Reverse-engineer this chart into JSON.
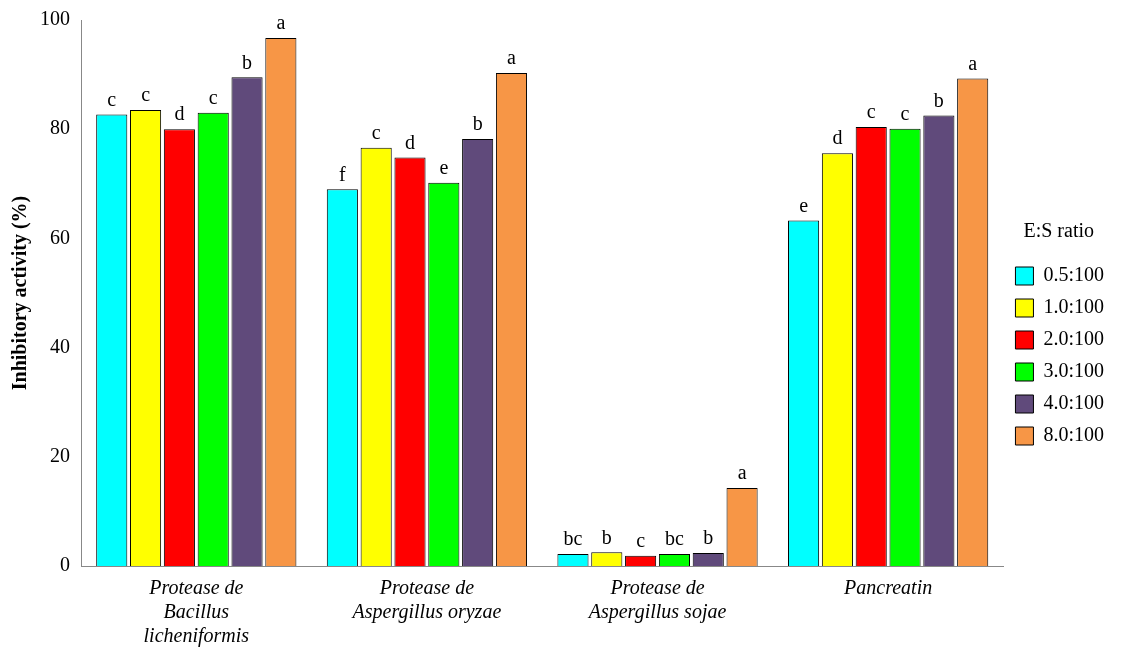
{
  "chart_data": {
    "type": "bar",
    "ylabel": "Inhibitory activity (%)",
    "legend_title": "E:S ratio",
    "legend": "right",
    "grid": false,
    "categories": [
      "Protease de Bacillus licheniformis",
      "Protease de Aspergillus oryzae",
      "Protease de Aspergillus sojae",
      "Pancreatin"
    ],
    "ylim": [
      0,
      100
    ],
    "yticks": [
      0,
      20,
      40,
      60,
      80,
      100
    ],
    "series": [
      {
        "name": "0.5:100",
        "color": "#00ffff",
        "values": [
          82.7,
          69.0,
          2.2,
          63.3
        ],
        "value_labels": [
          "c",
          "f",
          "bc",
          "e"
        ]
      },
      {
        "name": "1.0:100",
        "color": "#ffff00",
        "values": [
          83.5,
          76.6,
          2.5,
          75.6
        ],
        "value_labels": [
          "c",
          "c",
          "b",
          "d"
        ]
      },
      {
        "name": "2.0:100",
        "color": "#ff0000",
        "values": [
          80.0,
          74.8,
          1.9,
          80.4
        ],
        "value_labels": [
          "d",
          "d",
          "c",
          "c"
        ]
      },
      {
        "name": "3.0:100",
        "color": "#00ff00",
        "values": [
          83.0,
          70.2,
          2.2,
          80.1
        ],
        "value_labels": [
          "c",
          "e",
          "bc",
          "c"
        ]
      },
      {
        "name": "4.0:100",
        "color": "#604a7b",
        "values": [
          89.5,
          78.2,
          2.4,
          82.5
        ],
        "value_labels": [
          "b",
          "b",
          "b",
          "b"
        ]
      },
      {
        "name": "8.0:100",
        "color": "#f79646",
        "values": [
          96.7,
          90.3,
          14.3,
          89.3
        ],
        "value_labels": [
          "a",
          "a",
          "a",
          "a"
        ]
      }
    ]
  }
}
